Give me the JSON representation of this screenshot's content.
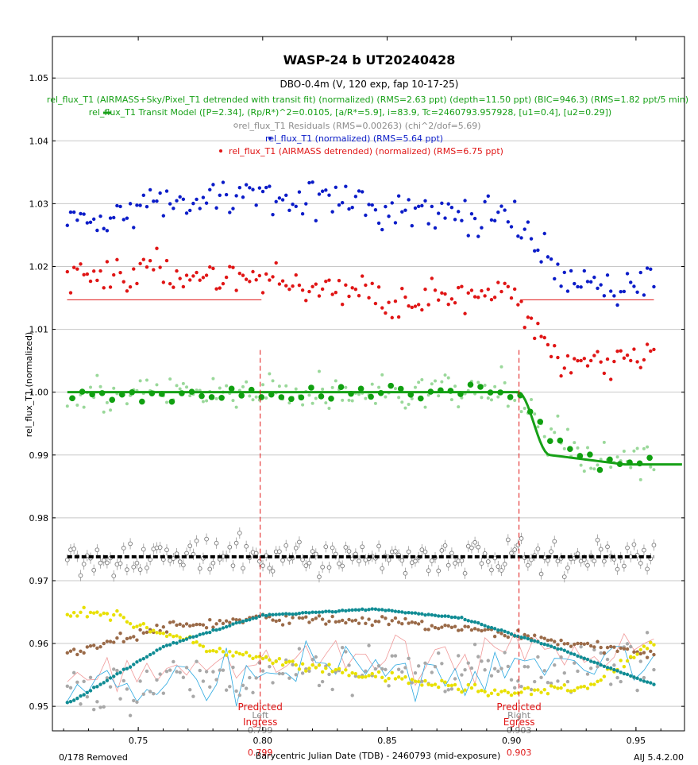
{
  "chart_data": {
    "type": "scatter",
    "title": "WASP-24 b UT20240428",
    "subtitle": "DBO-0.4m (V, 120 exp, fap 10-17-25)",
    "xlabel": "Barycentric Julian Date (TDB) - 2460793 (mid-exposure)",
    "ylabel": "rel_flux_T1 (normalized)",
    "xlim": [
      0.7155,
      0.9695
    ],
    "ylim": [
      0.9461,
      1.0566
    ],
    "x_ticks": [
      "0.75",
      "0.80",
      "0.85",
      "0.90",
      "0.95"
    ],
    "y_ticks": [
      "0.95",
      "0.96",
      "0.97",
      "0.98",
      "0.99",
      "1.00",
      "1.01",
      "1.02",
      "1.03",
      "1.04",
      "1.05"
    ],
    "grid": true,
    "legend": [
      {
        "label": "rel_flux_T1 (AIRMASS+Sky/Pixel_T1 detrended with transit fit) (normalized) (RMS=2.63 ppt) (depth=11.50 ppt) (BIC=946.3) (RMS=1.82 ppt/5 min)",
        "color": "#17a017"
      },
      {
        "label": "rel_flux_T1 Transit Model ([P=2.34], (Rp/R*)^2=0.0105, [a/R*=5.9], i=83.9, Tc=2460793.957928, [u1=0.4], [u2=0.29])",
        "color": "#17a017"
      },
      {
        "label": "rel_flux_T1 Residuals (RMS=0.00263) (chi^2/dof=5.69)",
        "color": "#8c8c8c"
      },
      {
        "label": "rel_flux_T1 (normalized) (RMS=5.64 ppt)",
        "color": "#0b1cc8"
      },
      {
        "label": "rel_flux_T1 (AIRMASS detrended) (normalized) (RMS=6.75 ppt)",
        "color": "#e01515"
      }
    ],
    "markers": [
      {
        "label1": "Predicted",
        "label2": "Ingress",
        "value": "0.799",
        "gray1": "Left",
        "gray2": "0.799",
        "x": 0.799
      },
      {
        "label1": "Predicted",
        "label2": "Egress",
        "value": "0.903",
        "gray1": "Right",
        "gray2": "0.903",
        "x": 0.903
      }
    ],
    "transit_model": {
      "t1": 0.9025,
      "t2": 0.9155,
      "depth": 0.0115,
      "baseline": 1.0,
      "x_end": 0.9695
    },
    "red_baselines": [
      {
        "x": [
          0.7214,
          0.7995
        ],
        "y": 1.0147
      },
      {
        "x": [
          0.9035,
          0.9572
        ],
        "y": 1.0147
      }
    ],
    "residual_baseline": 0.9738,
    "series_trends": {
      "detrended_binned": {
        "x": [
          0.722,
          0.9,
          0.905,
          0.915,
          0.93,
          0.957
        ],
        "y": [
          0.9995,
          1.0,
          0.9985,
          0.993,
          0.9895,
          0.989
        ]
      },
      "normalized_blue": {
        "x": [
          0.722,
          0.76,
          0.8,
          0.85,
          0.88,
          0.9,
          0.91,
          0.92,
          0.94,
          0.957
        ],
        "y": [
          1.0275,
          1.03,
          1.032,
          1.029,
          1.028,
          1.0275,
          1.023,
          1.018,
          1.0165,
          1.018
        ]
      },
      "airmass_red": {
        "x": [
          0.722,
          0.76,
          0.8,
          0.85,
          0.88,
          0.9,
          0.91,
          0.92,
          0.94,
          0.957
        ],
        "y": [
          1.0185,
          1.019,
          1.018,
          1.015,
          1.015,
          1.015,
          1.01,
          1.005,
          1.005,
          1.008
        ]
      },
      "residuals": {
        "x": [
          0.722,
          0.957
        ],
        "y": [
          0.9738,
          0.9738
        ]
      },
      "airmass_teal": {
        "x": [
          0.722,
          0.76,
          0.8,
          0.845,
          0.88,
          0.92,
          0.957
        ],
        "y": [
          0.9505,
          0.9595,
          0.9645,
          0.9655,
          0.964,
          0.959,
          0.9535
        ]
      },
      "brown": {
        "x": [
          0.722,
          0.76,
          0.8,
          0.85,
          0.9,
          0.94,
          0.957
        ],
        "y": [
          0.9585,
          0.9625,
          0.964,
          0.9635,
          0.9615,
          0.959,
          0.9585
        ]
      },
      "yellow": {
        "x": [
          0.722,
          0.735,
          0.75,
          0.78,
          0.82,
          0.86,
          0.9,
          0.93,
          0.957
        ],
        "y": [
          0.965,
          0.965,
          0.963,
          0.959,
          0.956,
          0.954,
          0.952,
          0.953,
          0.96
        ]
      },
      "gray": {
        "x": [
          0.722,
          0.78,
          0.84,
          0.9,
          0.957
        ],
        "y": [
          0.952,
          0.9545,
          0.956,
          0.9555,
          0.9575
        ]
      }
    }
  },
  "footer": {
    "removed": "0/178 Removed",
    "version": "AIJ 5.4.2.00"
  }
}
